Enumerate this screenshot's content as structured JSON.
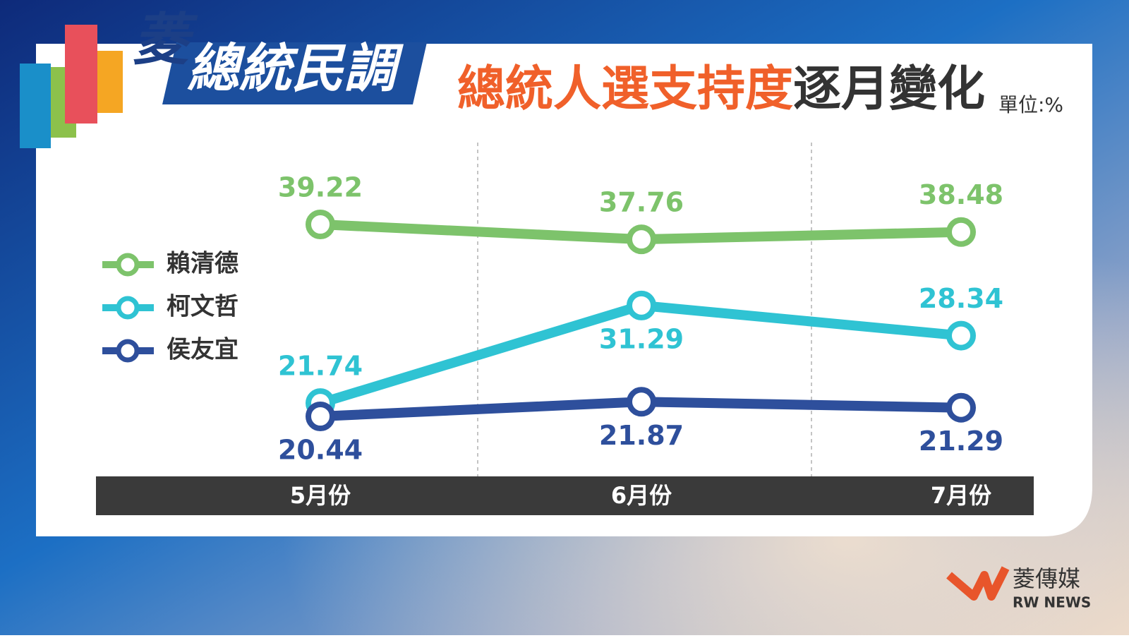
{
  "branding": {
    "badge_mark": "菱",
    "badge_text": "總統民調",
    "brand": "菱傳媒",
    "brand_en": "RW NEWS"
  },
  "chart_data": {
    "type": "line",
    "title": [
      "總統人選支持度",
      "逐月變化"
    ],
    "unit": "單位:%",
    "categories": [
      "5月份",
      "6月份",
      "7月份"
    ],
    "series": [
      {
        "name": "賴清德",
        "color": "#7dc36b",
        "values": [
          39.22,
          37.76,
          38.48
        ]
      },
      {
        "name": "柯文哲",
        "color": "#2fc3d3",
        "values": [
          21.74,
          31.29,
          28.34
        ]
      },
      {
        "name": "侯友宜",
        "color": "#2e4f9c",
        "values": [
          20.44,
          21.87,
          21.29
        ]
      }
    ]
  }
}
